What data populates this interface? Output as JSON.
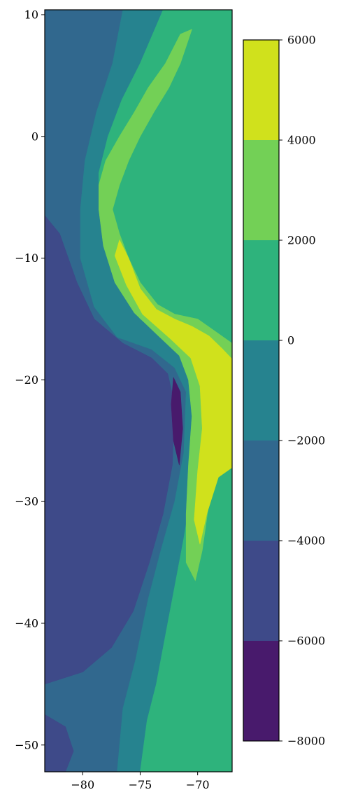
{
  "chart_data": {
    "type": "heatmap",
    "subtype": "filled-contour",
    "title": "",
    "xlabel": "",
    "ylabel": "",
    "xlim": [
      -83.3,
      -67.0
    ],
    "ylim": [
      -52.2,
      10.4
    ],
    "x_ticks": [
      -80,
      -75,
      -70
    ],
    "x_tick_labels": [
      "−80",
      "−75",
      "−70"
    ],
    "y_ticks": [
      10,
      0,
      -10,
      -20,
      -30,
      -40,
      -50
    ],
    "y_tick_labels": [
      "10",
      "0",
      "−10",
      "−20",
      "−30",
      "−40",
      "−50"
    ],
    "levels": [
      -8000,
      -6000,
      -4000,
      -2000,
      0,
      2000,
      4000,
      6000
    ],
    "level_colors": [
      "#481a6c",
      "#3e4a89",
      "#31688e",
      "#26838f",
      "#2eb37c",
      "#73d056",
      "#d0e11c"
    ],
    "colorbar": {
      "ticks": [
        6000,
        4000,
        2000,
        0,
        -2000,
        -4000,
        -6000,
        -8000
      ],
      "tick_labels": [
        "6000",
        "4000",
        "2000",
        "0",
        "−2000",
        "−4000",
        "−6000",
        "−8000"
      ],
      "placement": "right"
    },
    "regions": [
      {
        "level_index": 2,
        "points": [
          [
            -83.3,
            10.4
          ],
          [
            -76.0,
            10.4
          ],
          [
            -77.4,
            6
          ],
          [
            -78.8,
            2
          ],
          [
            -79.8,
            -2
          ],
          [
            -80.2,
            -6
          ],
          [
            -80.2,
            -10
          ],
          [
            -79.0,
            -14
          ],
          [
            -77.0,
            -16.5
          ],
          [
            -74.0,
            -17.5
          ],
          [
            -72.0,
            -19
          ],
          [
            -71.0,
            -21
          ],
          [
            -71.2,
            -26
          ],
          [
            -72.0,
            -30
          ],
          [
            -73.2,
            -34
          ],
          [
            -74.3,
            -38
          ],
          [
            -75.4,
            -43
          ],
          [
            -76.5,
            -47
          ],
          [
            -77.0,
            -52.2
          ],
          [
            -83.3,
            -52.2
          ]
        ]
      },
      {
        "level_index": 3,
        "points": [
          [
            -76.5,
            10.4
          ],
          [
            -73.0,
            10.4
          ],
          [
            -75.0,
            6
          ],
          [
            -76.6,
            3
          ],
          [
            -77.8,
            0
          ],
          [
            -78.6,
            -3
          ],
          [
            -78.6,
            -6
          ],
          [
            -77.8,
            -9
          ],
          [
            -77.2,
            -11
          ],
          [
            -76.4,
            -13
          ],
          [
            -75.0,
            -15
          ],
          [
            -72.6,
            -16.6
          ],
          [
            -71.0,
            -17.6
          ],
          [
            -70.4,
            -19
          ],
          [
            -69.8,
            -21
          ],
          [
            -70.0,
            -25
          ],
          [
            -70.5,
            -29
          ],
          [
            -71.2,
            -33
          ],
          [
            -72.0,
            -37
          ],
          [
            -72.8,
            -41
          ],
          [
            -73.6,
            -45
          ],
          [
            -74.4,
            -48
          ],
          [
            -75.0,
            -52.2
          ],
          [
            -77.0,
            -52.2
          ],
          [
            -76.5,
            -47
          ],
          [
            -75.4,
            -43
          ],
          [
            -74.3,
            -38
          ],
          [
            -73.2,
            -34
          ],
          [
            -72.0,
            -30
          ],
          [
            -71.2,
            -26
          ],
          [
            -71.0,
            -21
          ],
          [
            -72.0,
            -19
          ],
          [
            -74.0,
            -17.5
          ],
          [
            -77.0,
            -16.5
          ],
          [
            -79.0,
            -14
          ],
          [
            -80.2,
            -10
          ],
          [
            -80.2,
            -6
          ],
          [
            -79.8,
            -2
          ],
          [
            -78.8,
            2
          ],
          [
            -77.4,
            6
          ]
        ]
      },
      {
        "level_index": 4,
        "points": [
          [
            -73.0,
            10.4
          ],
          [
            -67.0,
            10.4
          ],
          [
            -67.0,
            -52.2
          ],
          [
            -75.0,
            -52.2
          ],
          [
            -74.4,
            -48
          ],
          [
            -73.6,
            -45
          ],
          [
            -72.8,
            -41
          ],
          [
            -72.0,
            -37
          ],
          [
            -71.2,
            -33
          ],
          [
            -70.5,
            -29
          ],
          [
            -70.0,
            -25
          ],
          [
            -69.8,
            -21
          ],
          [
            -70.4,
            -19
          ],
          [
            -71.0,
            -17.6
          ],
          [
            -72.6,
            -16.6
          ],
          [
            -75.0,
            -15
          ],
          [
            -76.4,
            -13
          ],
          [
            -77.2,
            -11
          ],
          [
            -77.8,
            -9
          ],
          [
            -78.6,
            -6
          ],
          [
            -78.6,
            -3
          ],
          [
            -77.8,
            0
          ],
          [
            -76.6,
            3
          ],
          [
            -75.0,
            6
          ]
        ]
      },
      {
        "level_index": 1,
        "points": [
          [
            -83.3,
            -6.5
          ],
          [
            -82.0,
            -8
          ],
          [
            -80.5,
            -12
          ],
          [
            -79.0,
            -15
          ],
          [
            -76.5,
            -17
          ],
          [
            -74.0,
            -18.2
          ],
          [
            -72.6,
            -19.5
          ],
          [
            -72.0,
            -22
          ],
          [
            -72.2,
            -27
          ],
          [
            -73.0,
            -31
          ],
          [
            -74.2,
            -35
          ],
          [
            -75.6,
            -39
          ],
          [
            -77.5,
            -42
          ],
          [
            -80.0,
            -44
          ],
          [
            -83.3,
            -45
          ],
          [
            -83.3,
            -6.5
          ]
        ]
      },
      {
        "level_index": 1,
        "points": [
          [
            -83.3,
            -47.5
          ],
          [
            -81.5,
            -48.5
          ],
          [
            -80.8,
            -50.5
          ],
          [
            -81.5,
            -52.2
          ],
          [
            -83.3,
            -52.2
          ]
        ]
      },
      {
        "level_index": 0,
        "points": [
          [
            -72.1,
            -19.8
          ],
          [
            -71.5,
            -21
          ],
          [
            -71.3,
            -24
          ],
          [
            -71.6,
            -27
          ],
          [
            -72.1,
            -25
          ],
          [
            -72.3,
            -22
          ]
        ]
      },
      {
        "level_index": 5,
        "points": [
          [
            -70.5,
            8.8
          ],
          [
            -71.5,
            6
          ],
          [
            -72.5,
            4
          ],
          [
            -73.8,
            2
          ],
          [
            -75.0,
            0
          ],
          [
            -76.0,
            -2
          ],
          [
            -76.8,
            -4
          ],
          [
            -77.4,
            -6
          ],
          [
            -76.8,
            -8
          ],
          [
            -76.0,
            -10
          ],
          [
            -75.0,
            -12
          ],
          [
            -73.5,
            -13.8
          ],
          [
            -72.0,
            -14.6
          ],
          [
            -70.0,
            -15
          ],
          [
            -68.5,
            -16
          ],
          [
            -67.0,
            -17
          ],
          [
            -67.0,
            -27
          ],
          [
            -68.2,
            -27.5
          ],
          [
            -69.0,
            -30
          ],
          [
            -69.6,
            -34
          ],
          [
            -70.2,
            -36.5
          ],
          [
            -71.0,
            -35
          ],
          [
            -71.0,
            -31
          ],
          [
            -70.8,
            -27
          ],
          [
            -70.5,
            -23
          ],
          [
            -70.8,
            -20
          ],
          [
            -71.6,
            -18
          ],
          [
            -73.5,
            -16.3
          ],
          [
            -75.5,
            -14.5
          ],
          [
            -77.2,
            -12
          ],
          [
            -78.2,
            -9
          ],
          [
            -78.6,
            -6
          ],
          [
            -78.6,
            -4
          ],
          [
            -78.0,
            -2
          ],
          [
            -76.8,
            0
          ],
          [
            -75.5,
            2
          ],
          [
            -74.3,
            4
          ],
          [
            -72.8,
            6
          ],
          [
            -71.5,
            8.4
          ]
        ]
      },
      {
        "level_index": 6,
        "points": [
          [
            -76.8,
            -8.5
          ],
          [
            -76.0,
            -10
          ],
          [
            -75.0,
            -12.5
          ],
          [
            -73.6,
            -14.2
          ],
          [
            -72.0,
            -15.0
          ],
          [
            -70.5,
            -15.6
          ],
          [
            -69.0,
            -16.4
          ],
          [
            -67.8,
            -17.5
          ],
          [
            -67.0,
            -18.3
          ],
          [
            -67.0,
            -27.2
          ],
          [
            -68.2,
            -28
          ],
          [
            -69.2,
            -31
          ],
          [
            -69.8,
            -33.5
          ],
          [
            -70.3,
            -31.5
          ],
          [
            -70.0,
            -27.5
          ],
          [
            -69.6,
            -24
          ],
          [
            -69.8,
            -20.5
          ],
          [
            -70.6,
            -18.2
          ],
          [
            -72.4,
            -16.6
          ],
          [
            -74.8,
            -14.6
          ],
          [
            -76.2,
            -12.2
          ],
          [
            -77.2,
            -9.8
          ]
        ]
      }
    ]
  }
}
